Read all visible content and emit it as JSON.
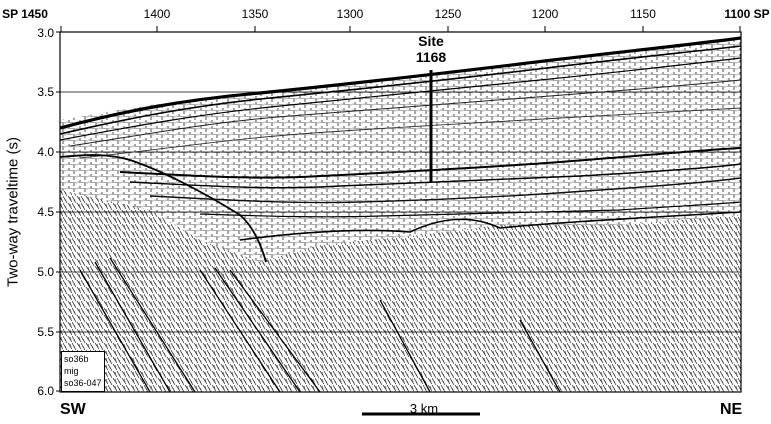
{
  "figure": {
    "top_axis": {
      "ticks": [
        "SP 1450",
        "1400",
        "1350",
        "1300",
        "1250",
        "1200",
        "1150",
        "1100 SP"
      ]
    },
    "left_axis": {
      "title": "Two-way traveltime (s)",
      "ticks": [
        "3.0",
        "3.5",
        "4.0",
        "4.5",
        "5.0",
        "5.5",
        "6.0"
      ]
    },
    "site": {
      "label_line1": "Site",
      "label_line2": "1168"
    },
    "legend_box": {
      "line1": "so36b",
      "line2": "mig",
      "line3": "so36-047"
    },
    "directions": {
      "left": "SW",
      "right": "NE"
    },
    "scale_bar": {
      "label": "3 km"
    },
    "colors": {
      "ink": "#000000",
      "paper": "#ffffff"
    }
  }
}
